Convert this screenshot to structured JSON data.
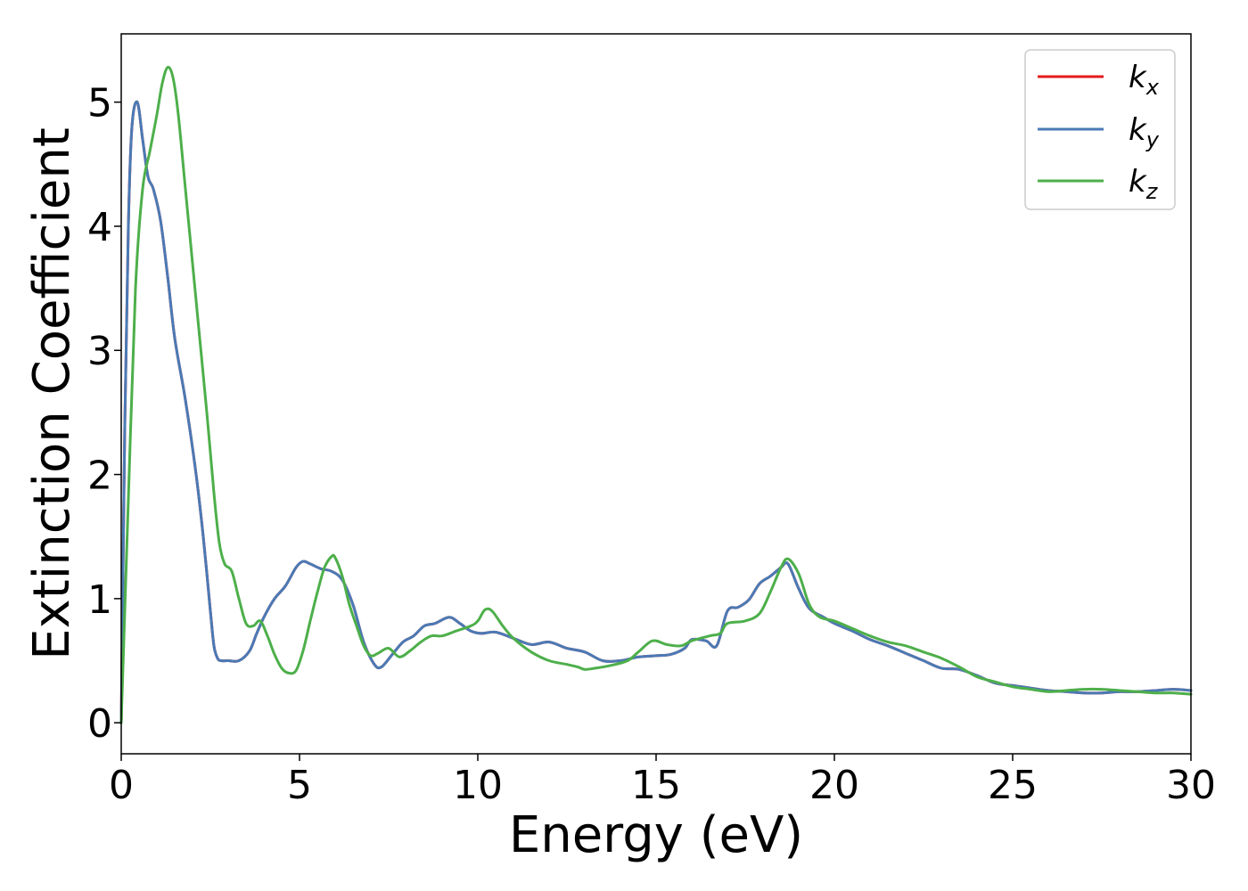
{
  "chart_data": {
    "type": "line",
    "xlabel": "Energy (eV)",
    "ylabel": "Extinction Coefficient",
    "xlim": [
      0,
      30
    ],
    "ylim": [
      -0.25,
      5.55
    ],
    "xticks": [
      0,
      5,
      10,
      15,
      20,
      25,
      30
    ],
    "yticks": [
      0,
      1,
      2,
      3,
      4,
      5
    ],
    "grid": false,
    "legend_position": "top-right",
    "series": [
      {
        "name": "k",
        "subscript": "x",
        "color": "#e41a1c",
        "x": [
          0,
          0.1,
          0.2,
          0.3,
          0.45,
          0.6,
          0.75,
          0.9,
          1.1,
          1.3,
          1.5,
          1.8,
          2.1,
          2.3,
          2.5,
          2.6,
          2.7,
          2.8,
          3.0,
          3.3,
          3.6,
          3.8,
          4.0,
          4.3,
          4.6,
          4.9,
          5.1,
          5.3,
          5.6,
          5.9,
          6.2,
          6.5,
          6.8,
          7.1,
          7.3,
          7.6,
          7.9,
          8.2,
          8.5,
          8.8,
          9.2,
          9.5,
          9.8,
          10.1,
          10.5,
          11.0,
          11.5,
          12.0,
          12.5,
          13.0,
          13.5,
          14.0,
          14.5,
          15.0,
          15.4,
          15.8,
          16.0,
          16.4,
          16.7,
          17.0,
          17.3,
          17.6,
          17.9,
          18.2,
          18.5,
          18.7,
          19.0,
          19.3,
          19.7,
          20.0,
          20.5,
          21.0,
          21.5,
          22.0,
          22.5,
          23.0,
          23.5,
          24.0,
          24.5,
          25.0,
          25.5,
          26.0,
          26.5,
          27.0,
          27.5,
          28.0,
          28.5,
          29.0,
          29.5,
          30.0
        ],
        "y": [
          0.0,
          2.4,
          4.0,
          4.8,
          5.0,
          4.7,
          4.4,
          4.3,
          4.05,
          3.6,
          3.1,
          2.6,
          2.0,
          1.5,
          0.9,
          0.62,
          0.52,
          0.5,
          0.5,
          0.5,
          0.58,
          0.72,
          0.85,
          1.0,
          1.1,
          1.25,
          1.3,
          1.28,
          1.24,
          1.22,
          1.15,
          0.95,
          0.65,
          0.47,
          0.45,
          0.55,
          0.65,
          0.7,
          0.78,
          0.8,
          0.85,
          0.8,
          0.74,
          0.72,
          0.73,
          0.68,
          0.63,
          0.65,
          0.6,
          0.57,
          0.5,
          0.5,
          0.53,
          0.54,
          0.55,
          0.6,
          0.67,
          0.66,
          0.62,
          0.9,
          0.93,
          0.99,
          1.12,
          1.18,
          1.25,
          1.28,
          1.08,
          0.92,
          0.85,
          0.8,
          0.74,
          0.67,
          0.62,
          0.56,
          0.5,
          0.44,
          0.43,
          0.38,
          0.32,
          0.3,
          0.28,
          0.26,
          0.25,
          0.24,
          0.24,
          0.25,
          0.25,
          0.26,
          0.27,
          0.26
        ]
      },
      {
        "name": "k",
        "subscript": "y",
        "color": "#4a7ab5",
        "x": [
          0,
          0.1,
          0.2,
          0.3,
          0.45,
          0.6,
          0.75,
          0.9,
          1.1,
          1.3,
          1.5,
          1.8,
          2.1,
          2.3,
          2.5,
          2.6,
          2.7,
          2.8,
          3.0,
          3.3,
          3.6,
          3.8,
          4.0,
          4.3,
          4.6,
          4.9,
          5.1,
          5.3,
          5.6,
          5.9,
          6.2,
          6.5,
          6.8,
          7.1,
          7.3,
          7.6,
          7.9,
          8.2,
          8.5,
          8.8,
          9.2,
          9.5,
          9.8,
          10.1,
          10.5,
          11.0,
          11.5,
          12.0,
          12.5,
          13.0,
          13.5,
          14.0,
          14.5,
          15.0,
          15.4,
          15.8,
          16.0,
          16.4,
          16.7,
          17.0,
          17.3,
          17.6,
          17.9,
          18.2,
          18.5,
          18.7,
          19.0,
          19.3,
          19.7,
          20.0,
          20.5,
          21.0,
          21.5,
          22.0,
          22.5,
          23.0,
          23.5,
          24.0,
          24.5,
          25.0,
          25.5,
          26.0,
          26.5,
          27.0,
          27.5,
          28.0,
          28.5,
          29.0,
          29.5,
          30.0
        ],
        "y": [
          0.0,
          2.4,
          4.0,
          4.8,
          5.0,
          4.7,
          4.4,
          4.3,
          4.05,
          3.6,
          3.1,
          2.6,
          2.0,
          1.5,
          0.9,
          0.62,
          0.52,
          0.5,
          0.5,
          0.5,
          0.58,
          0.72,
          0.85,
          1.0,
          1.1,
          1.25,
          1.3,
          1.28,
          1.24,
          1.22,
          1.15,
          0.95,
          0.65,
          0.47,
          0.45,
          0.55,
          0.65,
          0.7,
          0.78,
          0.8,
          0.85,
          0.8,
          0.74,
          0.72,
          0.73,
          0.68,
          0.63,
          0.65,
          0.6,
          0.57,
          0.5,
          0.5,
          0.53,
          0.54,
          0.55,
          0.6,
          0.67,
          0.66,
          0.62,
          0.9,
          0.93,
          0.99,
          1.12,
          1.18,
          1.25,
          1.28,
          1.08,
          0.92,
          0.85,
          0.8,
          0.74,
          0.67,
          0.62,
          0.56,
          0.5,
          0.44,
          0.43,
          0.38,
          0.32,
          0.3,
          0.28,
          0.26,
          0.25,
          0.24,
          0.24,
          0.25,
          0.25,
          0.26,
          0.27,
          0.26
        ]
      },
      {
        "name": "k",
        "subscript": "z",
        "color": "#4daf4a",
        "x": [
          0,
          0.2,
          0.4,
          0.6,
          0.8,
          1.0,
          1.15,
          1.3,
          1.45,
          1.6,
          1.8,
          2.0,
          2.2,
          2.4,
          2.6,
          2.75,
          2.9,
          3.1,
          3.3,
          3.5,
          3.7,
          3.9,
          4.1,
          4.3,
          4.5,
          4.7,
          4.9,
          5.1,
          5.3,
          5.5,
          5.7,
          5.9,
          6.0,
          6.2,
          6.4,
          6.6,
          6.8,
          7.0,
          7.2,
          7.5,
          7.8,
          8.1,
          8.4,
          8.7,
          9.0,
          9.4,
          9.8,
          10.0,
          10.2,
          10.4,
          10.7,
          11.0,
          11.5,
          12.0,
          12.5,
          12.8,
          13.0,
          13.3,
          13.7,
          14.2,
          14.5,
          14.9,
          15.3,
          15.7,
          16.0,
          16.5,
          16.8,
          17.0,
          17.5,
          17.9,
          18.2,
          18.5,
          18.7,
          19.0,
          19.3,
          19.6,
          20.0,
          20.5,
          21.0,
          21.5,
          22.0,
          22.5,
          23.0,
          23.5,
          24.0,
          24.5,
          25.0,
          25.5,
          26.0,
          26.5,
          27.0,
          27.5,
          28.0,
          28.5,
          29.0,
          29.5,
          30.0
        ],
        "y": [
          0.0,
          1.8,
          3.5,
          4.3,
          4.6,
          4.9,
          5.15,
          5.28,
          5.2,
          4.9,
          4.3,
          3.7,
          3.1,
          2.5,
          1.85,
          1.45,
          1.28,
          1.22,
          1.0,
          0.8,
          0.78,
          0.82,
          0.7,
          0.55,
          0.44,
          0.4,
          0.42,
          0.58,
          0.82,
          1.05,
          1.25,
          1.34,
          1.33,
          1.18,
          0.95,
          0.78,
          0.62,
          0.54,
          0.56,
          0.6,
          0.53,
          0.58,
          0.65,
          0.7,
          0.7,
          0.74,
          0.78,
          0.82,
          0.91,
          0.9,
          0.78,
          0.68,
          0.57,
          0.5,
          0.47,
          0.45,
          0.43,
          0.44,
          0.46,
          0.5,
          0.57,
          0.66,
          0.63,
          0.62,
          0.66,
          0.7,
          0.72,
          0.8,
          0.82,
          0.88,
          1.05,
          1.25,
          1.32,
          1.2,
          0.95,
          0.85,
          0.82,
          0.76,
          0.7,
          0.65,
          0.62,
          0.57,
          0.52,
          0.45,
          0.37,
          0.33,
          0.29,
          0.27,
          0.25,
          0.26,
          0.27,
          0.27,
          0.26,
          0.25,
          0.24,
          0.24,
          0.23
        ]
      }
    ]
  }
}
